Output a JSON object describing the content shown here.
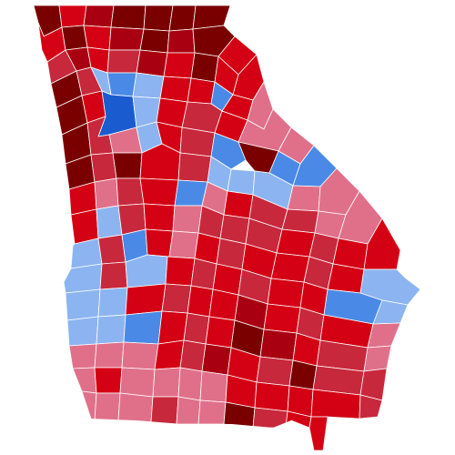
{
  "map": {
    "palette": {
      "rep_darkest": "#7a0000",
      "rep_strong": "#a80010",
      "rep_solid": "#d40014",
      "rep_medium": "#c8283c",
      "rep_lean": "#e0708a",
      "dem_lean": "#8cb4f0",
      "dem_medium": "#4a8ae6",
      "dem_strong": "#1a5cd0"
    },
    "outline_color": "#ffffff"
  }
}
